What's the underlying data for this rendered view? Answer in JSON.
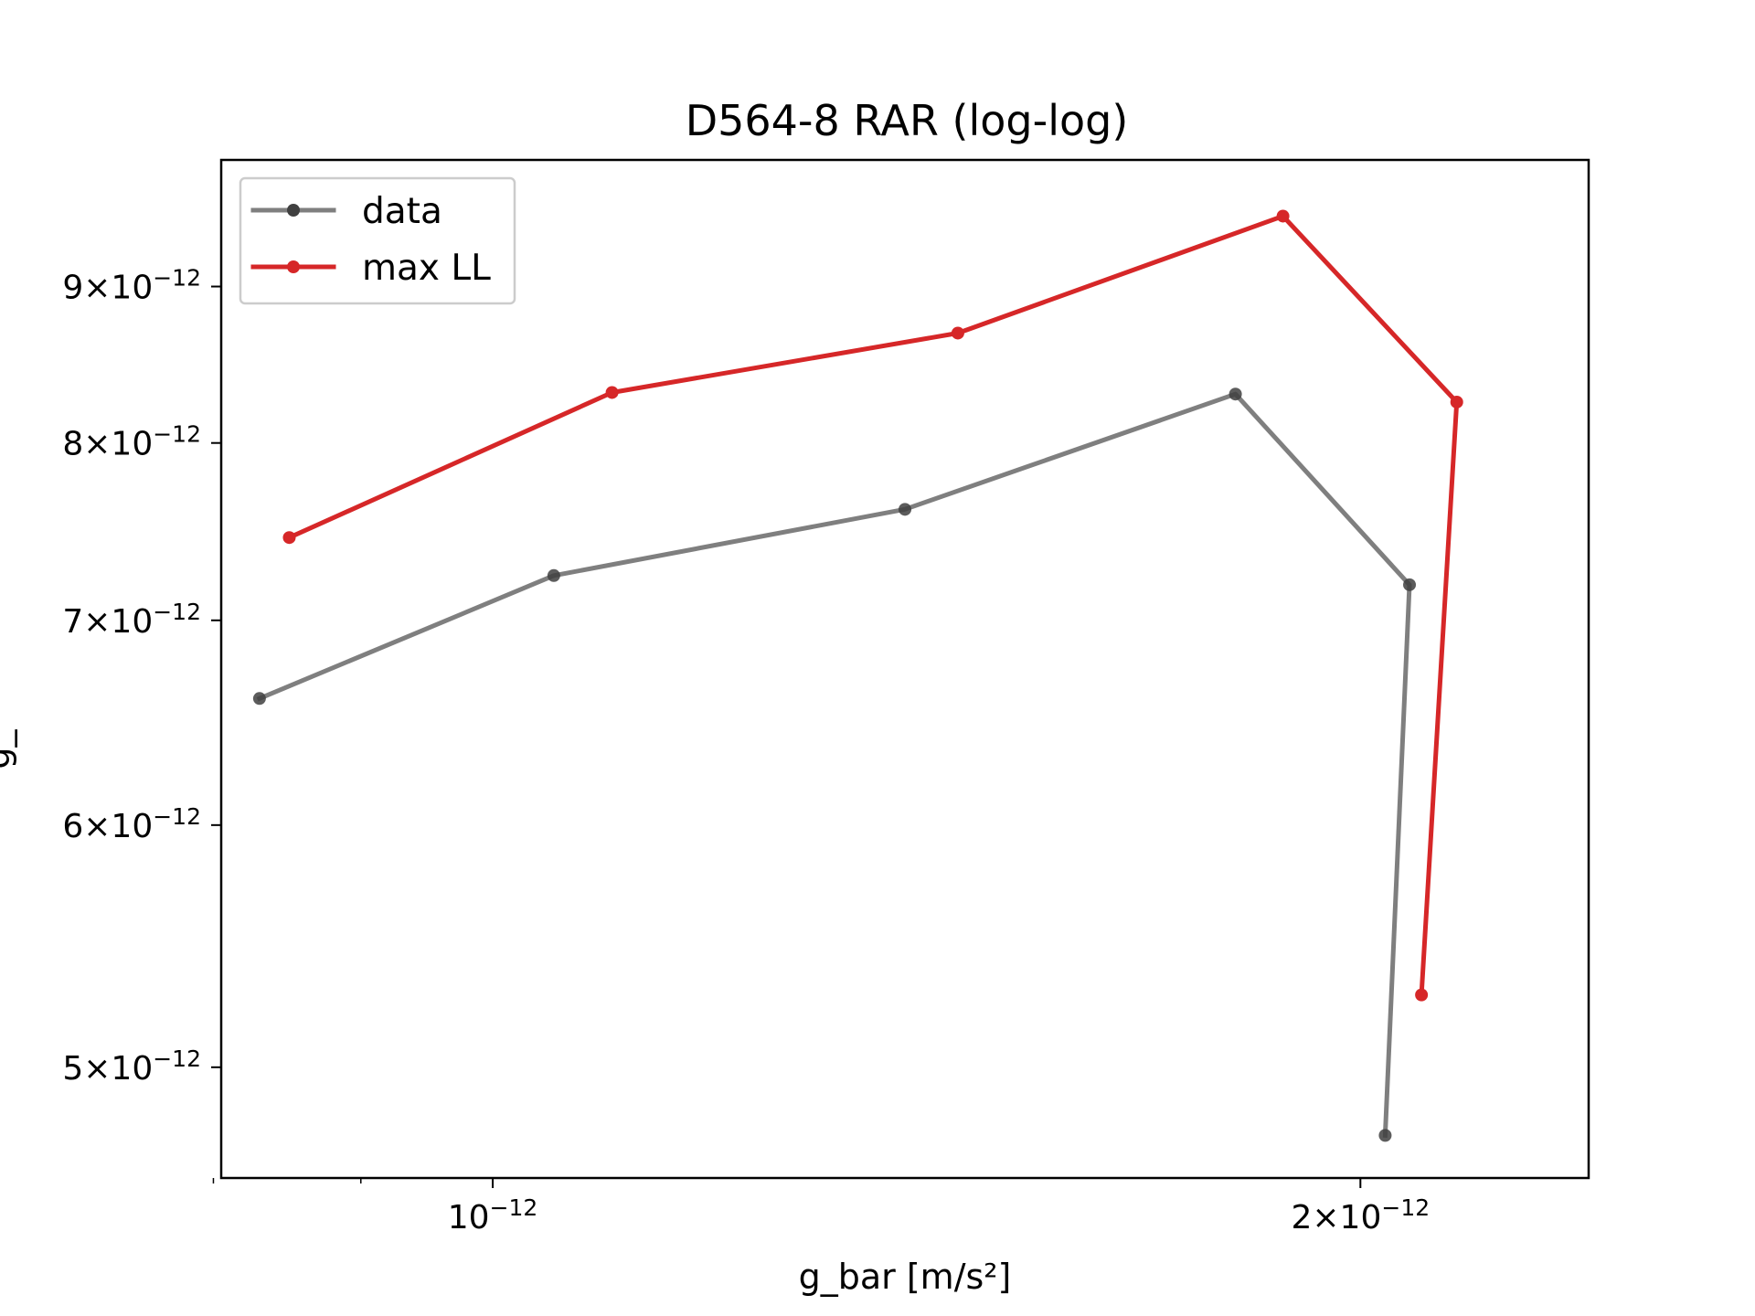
{
  "chart_data": {
    "type": "line",
    "title": "D564-8 RAR (log-log)",
    "xlabel": "g_bar [m/s²]",
    "ylabel": "g_",
    "xscale": "log",
    "yscale": "log",
    "xlim": [
      8.05e-13,
      2.4e-12
    ],
    "ylim": [
      4.6e-12,
      9.9e-12
    ],
    "x_major_ticks": [
      {
        "value": 1e-12,
        "mantissa": "",
        "exponent": "−12"
      },
      {
        "value": 2e-12,
        "mantissa": "2",
        "exponent": "−12"
      }
    ],
    "x_minor_ticks": [
      8e-13,
      9e-13
    ],
    "y_ticks": [
      {
        "value": 5e-12,
        "mantissa": "5",
        "exponent": "−12"
      },
      {
        "value": 6e-12,
        "mantissa": "6",
        "exponent": "−12"
      },
      {
        "value": 7e-12,
        "mantissa": "7",
        "exponent": "−12"
      },
      {
        "value": 8e-12,
        "mantissa": "8",
        "exponent": "−12"
      },
      {
        "value": 9e-12,
        "mantissa": "9",
        "exponent": "−12"
      }
    ],
    "grid": false,
    "legend_position": "upper-left",
    "series": [
      {
        "name": "data",
        "color": "#7f7f7f",
        "marker_color": "#404040",
        "x": [
          8.3e-13,
          1.05e-12,
          1.39e-12,
          1.81e-12,
          2.08e-12,
          2.04e-12
        ],
        "y": [
          6.6e-12,
          7.24e-12,
          7.61e-12,
          8.3e-12,
          7.19e-12,
          4.75e-12
        ]
      },
      {
        "name": "max LL",
        "color": "#d62728",
        "marker_color": "#d62728",
        "x": [
          8.5e-13,
          1.1e-12,
          1.45e-12,
          1.88e-12,
          2.16e-12,
          2.1e-12
        ],
        "y": [
          7.45e-12,
          8.31e-12,
          8.69e-12,
          9.49e-12,
          8.25e-12,
          5.28e-12
        ]
      }
    ]
  }
}
